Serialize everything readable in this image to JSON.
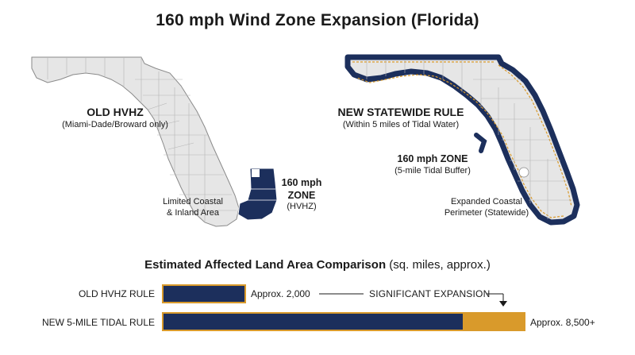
{
  "title": "160 mph Wind Zone Expansion (Florida)",
  "left_map": {
    "heading": "OLD HVHZ",
    "subheading": "(Miami-Dade/Broward only)",
    "zone_line1": "160 mph",
    "zone_line2": "ZONE",
    "zone_line3": "(HVHZ)",
    "area_line1": "Limited Coastal",
    "area_line2": "& Inland Area"
  },
  "right_map": {
    "heading": "NEW STATEWIDE RULE",
    "subheading": "(Within 5 miles of Tidal Water)",
    "zone_line1": "160 mph ZONE",
    "zone_line2": "(5-mile Tidal Buffer)",
    "area_line1": "Expanded Coastal",
    "area_line2": "Perimeter (Statewide)"
  },
  "comparison": {
    "title_bold": "Estimated Affected Land Area Comparison",
    "title_rest": " (sq. miles, approx.)",
    "expansion_label": "SIGNIFICANT EXPANSION",
    "rows": [
      {
        "label": "OLD HVHZ RULE",
        "value_label": "Approx. 2,000"
      },
      {
        "label": "NEW 5-MILE TIDAL RULE",
        "value_label": "Approx. 8,500+"
      }
    ]
  },
  "colors": {
    "navy": "#1c2f5c",
    "gold": "#d99a2b",
    "land": "#e6e6e6"
  }
}
